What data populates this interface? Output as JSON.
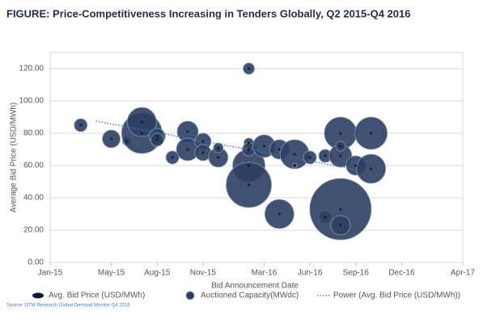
{
  "chart_data": {
    "type": "bubble",
    "title": "FIGURE: Price-Competitiveness Increasing in Tenders Globally, Q2 2015-Q4 2016",
    "x_label": "Bid Announcement Date",
    "y_label": "Average Bid Price (USD/MWh)",
    "source": "Source: GTM Research Global Demand Monitor Q4 2016",
    "xlim": [
      "2015-01",
      "2017-04"
    ],
    "xticks": [
      {
        "value": "2015-01",
        "label": "Jan-15"
      },
      {
        "value": "2015-05",
        "label": "May-15"
      },
      {
        "value": "2015-08",
        "label": "Aug-15"
      },
      {
        "value": "2015-11",
        "label": "Nov-15"
      },
      {
        "value": "2016-03",
        "label": "Mar-16"
      },
      {
        "value": "2016-06",
        "label": "Jun-16"
      },
      {
        "value": "2016-09",
        "label": "Sep-16"
      },
      {
        "value": "2016-12",
        "label": "Dec-16"
      },
      {
        "value": "2017-04",
        "label": "Apr-17"
      }
    ],
    "ylim": [
      0,
      130
    ],
    "yticks": [
      {
        "value": 0,
        "label": "0.00"
      },
      {
        "value": 20,
        "label": "20.00"
      },
      {
        "value": 40,
        "label": "40.00"
      },
      {
        "value": 60,
        "label": "60.00"
      },
      {
        "value": 80,
        "label": "80.00"
      },
      {
        "value": 100,
        "label": "100.00"
      },
      {
        "value": 120,
        "label": "120.00"
      }
    ],
    "grid": true,
    "legend": "bottom",
    "series": [
      {
        "name": "Avg. Bid Price (USD/MWh)",
        "color": "#0d1b3e",
        "x": [
          "2015-03",
          "2015-05",
          "2015-06",
          "2015-07",
          "2015-07",
          "2015-08",
          "2015-08",
          "2015-09",
          "2015-10",
          "2015-10",
          "2015-11",
          "2015-11",
          "2015-12",
          "2015-12",
          "2016-02",
          "2016-02",
          "2016-02",
          "2016-02",
          "2016-02",
          "2016-03",
          "2016-04",
          "2016-04",
          "2016-05",
          "2016-05",
          "2016-06",
          "2016-07",
          "2016-07",
          "2016-08",
          "2016-08",
          "2016-08",
          "2016-08",
          "2016-08",
          "2016-09",
          "2016-10",
          "2016-10"
        ],
        "values": [
          85,
          76.5,
          75,
          80,
          87,
          78,
          76,
          65,
          81,
          70,
          75,
          68,
          65,
          71,
          60,
          48,
          120,
          74,
          70,
          72,
          30,
          70,
          67,
          60,
          65,
          66,
          28,
          33,
          23,
          80,
          66,
          72,
          60,
          58,
          80
        ]
      },
      {
        "name": "Auctioned Capacity(MWdc)",
        "color": "#2c3e63",
        "x": [
          "2015-03",
          "2015-05",
          "2015-06",
          "2015-07",
          "2015-07",
          "2015-08",
          "2015-08",
          "2015-09",
          "2015-10",
          "2015-10",
          "2015-11",
          "2015-11",
          "2015-12",
          "2015-12",
          "2016-02",
          "2016-02",
          "2016-02",
          "2016-02",
          "2016-02",
          "2016-03",
          "2016-04",
          "2016-04",
          "2016-05",
          "2016-05",
          "2016-06",
          "2016-07",
          "2016-07",
          "2016-08",
          "2016-08",
          "2016-08",
          "2016-08",
          "2016-08",
          "2016-09",
          "2016-10",
          "2016-10"
        ],
        "values": [
          85,
          76.5,
          75,
          80,
          87,
          78,
          76,
          65,
          81,
          70,
          75,
          68,
          65,
          71,
          60,
          48,
          120,
          74,
          70,
          72,
          30,
          70,
          67,
          60,
          65,
          66,
          28,
          33,
          23,
          80,
          66,
          72,
          60,
          58,
          80
        ],
        "sizes": [
          89,
          167,
          35,
          865,
          448,
          138,
          89,
          89,
          234,
          271,
          138,
          138,
          199,
          50,
          554,
          1085,
          68,
          50,
          89,
          271,
          448,
          199,
          448,
          12,
          89,
          89,
          68,
          2000,
          199,
          554,
          271,
          50,
          199,
          448,
          554
        ]
      },
      {
        "name": "Power (Avg. Bid Price (USD/MWh))",
        "color": "#2e75b6",
        "style": "dotted",
        "x": [
          "2015-04",
          "2016-09"
        ],
        "values": [
          87.5,
          57.5
        ]
      }
    ]
  }
}
